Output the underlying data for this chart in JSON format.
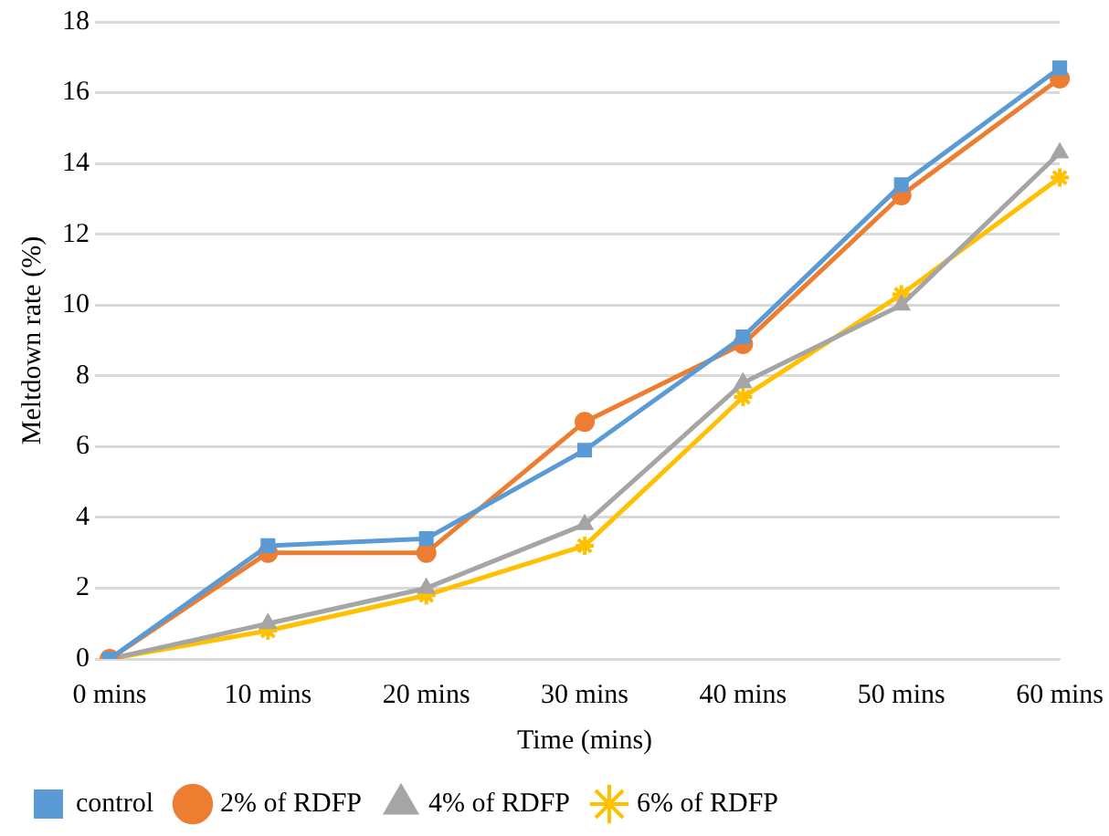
{
  "chart_data": {
    "type": "line",
    "xlabel": "Time (mins)",
    "ylabel": "Meltdown rate (%)",
    "categories": [
      "0 mins",
      "10 mins",
      "20 mins",
      "30 mins",
      "40 mins",
      "50 mins",
      "60 mins"
    ],
    "series": [
      {
        "name": "control",
        "color": "#5b9bd5",
        "marker": "square",
        "values": [
          0,
          3.2,
          3.4,
          5.9,
          9.1,
          13.4,
          16.7
        ]
      },
      {
        "name": "2% of RDFP",
        "color": "#ed7d31",
        "marker": "circle",
        "values": [
          0,
          3,
          3,
          6.7,
          8.9,
          13.1,
          16.4
        ]
      },
      {
        "name": "4% of RDFP",
        "color": "#a5a5a5",
        "marker": "triangle",
        "values": [
          0,
          1,
          2,
          3.8,
          7.8,
          10,
          14.3
        ]
      },
      {
        "name": "6% of RDFP",
        "color": "#ffc000",
        "marker": "cross",
        "values": [
          0,
          0.8,
          1.8,
          3.2,
          7.4,
          10.3,
          13.6
        ]
      }
    ],
    "ylim": [
      0,
      18
    ],
    "yticks": [
      0,
      2,
      4,
      6,
      8,
      10,
      12,
      14,
      16,
      18
    ],
    "grid": "y",
    "legend": "bottom",
    "line_style": "solid"
  }
}
